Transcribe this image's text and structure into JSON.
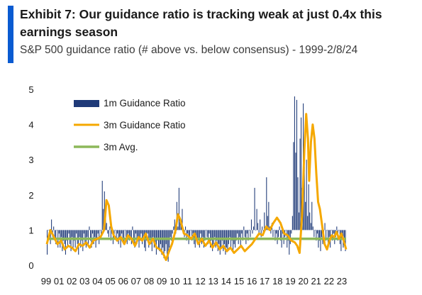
{
  "header": {
    "title": "Exhibit 7: Our guidance ratio is tracking weak at just 0.4x this earnings season",
    "subtitle": "S&P 500 guidance ratio (# above vs. below consensus) - 1999-2/8/24"
  },
  "colors": {
    "accent": "#0a5bd1",
    "bar": "#1f3a78",
    "line3m": "#f5a800",
    "avg": "#8db85a"
  },
  "chart_data": {
    "type": "bar",
    "title": "",
    "xlabel": "",
    "ylabel": "",
    "ylim": [
      0,
      5
    ],
    "yticks": [
      "0",
      "1",
      "2",
      "3",
      "4",
      "5"
    ],
    "xticks": [
      "99",
      "01",
      "02",
      "03",
      "04",
      "05",
      "06",
      "07",
      "08",
      "09",
      "10",
      "11",
      "12",
      "13",
      "14",
      "15",
      "16",
      "17",
      "18",
      "19",
      "20",
      "21",
      "22",
      "23"
    ],
    "x_start": 1999,
    "x_end": 2024.1,
    "grid": false,
    "legend": {
      "position": "top-left"
    },
    "series": [
      {
        "name": "1m Guidance Ratio",
        "kind": "bar",
        "values": "monthly ratio 1999-2024 (see bar_values)"
      },
      {
        "name": "3m Guidance Ratio",
        "kind": "line"
      },
      {
        "name": "3m Avg.",
        "kind": "line"
      }
    ],
    "avg_value": 0.75,
    "bar_values": [
      0.3,
      1.0,
      0.9,
      0.6,
      1.3,
      0.8,
      1.1,
      0.7,
      0.6,
      1.0,
      0.5,
      0.9,
      0.5,
      0.8,
      0.4,
      0.7,
      0.6,
      0.3,
      0.7,
      0.5,
      0.9,
      0.6,
      0.4,
      0.8,
      0.5,
      0.7,
      0.5,
      0.9,
      0.6,
      0.3,
      0.8,
      0.5,
      0.7,
      0.4,
      0.9,
      0.6,
      0.5,
      0.8,
      0.6,
      1.1,
      0.7,
      0.5,
      0.9,
      0.6,
      0.8,
      0.5,
      0.7,
      0.9,
      0.6,
      1.0,
      0.8,
      2.4,
      1.6,
      2.1,
      1.5,
      1.2,
      0.9,
      0.8,
      1.1,
      0.7,
      0.9,
      0.6,
      0.8,
      1.0,
      0.7,
      0.9,
      0.6,
      0.8,
      0.5,
      0.9,
      0.7,
      0.6,
      1.0,
      0.8,
      0.6,
      0.9,
      0.7,
      0.8,
      0.6,
      1.1,
      0.7,
      0.5,
      0.9,
      0.6,
      0.8,
      0.5,
      0.7,
      0.9,
      0.6,
      0.8,
      0.5,
      0.4,
      0.7,
      0.9,
      0.5,
      0.7,
      0.6,
      0.4,
      0.8,
      0.5,
      0.6,
      0.3,
      0.7,
      0.5,
      0.4,
      0.6,
      0.3,
      0.5,
      0.2,
      0.4,
      0.6,
      0.3,
      0.1,
      0.5,
      0.8,
      0.7,
      0.9,
      1.1,
      1.3,
      0.9,
      1.8,
      1.1,
      2.2,
      1.3,
      1.2,
      1.6,
      1.0,
      0.8,
      1.1,
      0.7,
      0.9,
      0.6,
      0.8,
      1.0,
      0.7,
      0.9,
      0.6,
      0.5,
      0.8,
      0.6,
      0.7,
      0.5,
      0.9,
      0.6,
      0.8,
      0.5,
      0.7,
      1.0,
      0.8,
      0.6,
      0.9,
      0.5,
      0.7,
      0.4,
      0.6,
      0.8,
      0.5,
      0.7,
      0.4,
      0.6,
      0.3,
      0.5,
      0.7,
      0.4,
      0.6,
      0.3,
      0.5,
      0.4,
      0.6,
      0.8,
      0.5,
      0.7,
      0.4,
      0.6,
      0.5,
      0.7,
      0.9,
      0.6,
      0.8,
      0.5,
      0.9,
      0.7,
      1.1,
      0.8,
      0.6,
      0.9,
      0.7,
      1.0,
      0.8,
      1.3,
      0.9,
      1.1,
      2.2,
      1.0,
      1.6,
      1.2,
      0.9,
      1.3,
      0.8,
      1.1,
      0.9,
      1.5,
      1.0,
      2.5,
      1.4,
      1.8,
      1.1,
      0.9,
      1.2,
      0.8,
      1.0,
      0.7,
      0.9,
      0.6,
      0.8,
      1.1,
      0.7,
      0.5,
      0.9,
      0.6,
      0.8,
      1.0,
      0.5,
      0.7,
      0.3,
      0.6,
      0.9,
      1.4,
      3.5,
      4.8,
      3.2,
      4.7,
      2.5,
      1.5,
      3.6,
      4.2,
      2.2,
      4.6,
      2.8,
      1.8,
      3.0,
      1.4,
      2.3,
      1.5,
      1.2,
      1.8,
      1.1,
      0.8,
      1.0,
      0.7,
      0.9,
      0.5,
      0.7,
      0.4,
      0.8,
      0.6,
      0.9,
      1.2,
      0.7,
      1.0,
      0.6,
      0.8,
      0.5,
      1.0,
      0.7,
      0.9,
      0.6,
      0.8,
      1.1,
      0.7,
      1.0,
      0.6,
      0.4,
      0.8,
      0.5,
      0.7,
      0.4
    ],
    "line_3m": [
      [
        1999.0,
        0.6
      ],
      [
        1999.3,
        1.0
      ],
      [
        1999.6,
        0.8
      ],
      [
        1999.9,
        0.6
      ],
      [
        2000.2,
        0.7
      ],
      [
        2000.5,
        0.45
      ],
      [
        2000.8,
        0.55
      ],
      [
        2001.1,
        0.5
      ],
      [
        2001.4,
        0.4
      ],
      [
        2001.7,
        0.6
      ],
      [
        2002.0,
        0.55
      ],
      [
        2002.3,
        0.65
      ],
      [
        2002.6,
        0.5
      ],
      [
        2002.9,
        0.7
      ],
      [
        2003.2,
        0.75
      ],
      [
        2003.5,
        0.8
      ],
      [
        2003.8,
        1.0
      ],
      [
        2004.0,
        1.85
      ],
      [
        2004.2,
        1.7
      ],
      [
        2004.4,
        1.1
      ],
      [
        2004.6,
        0.85
      ],
      [
        2004.9,
        0.7
      ],
      [
        2005.2,
        0.8
      ],
      [
        2005.5,
        0.6
      ],
      [
        2005.8,
        0.85
      ],
      [
        2006.1,
        0.75
      ],
      [
        2006.4,
        0.55
      ],
      [
        2006.7,
        0.8
      ],
      [
        2007.0,
        0.7
      ],
      [
        2007.3,
        0.9
      ],
      [
        2007.6,
        0.6
      ],
      [
        2007.9,
        0.75
      ],
      [
        2008.2,
        0.5
      ],
      [
        2008.5,
        0.45
      ],
      [
        2008.8,
        0.3
      ],
      [
        2009.0,
        0.15
      ],
      [
        2009.2,
        0.35
      ],
      [
        2009.5,
        0.6
      ],
      [
        2009.8,
        1.0
      ],
      [
        2010.0,
        1.45
      ],
      [
        2010.2,
        1.3
      ],
      [
        2010.5,
        0.9
      ],
      [
        2010.8,
        0.85
      ],
      [
        2011.1,
        0.75
      ],
      [
        2011.4,
        0.9
      ],
      [
        2011.7,
        0.6
      ],
      [
        2012.0,
        0.75
      ],
      [
        2012.3,
        0.55
      ],
      [
        2012.6,
        0.7
      ],
      [
        2012.9,
        0.5
      ],
      [
        2013.2,
        0.65
      ],
      [
        2013.5,
        0.45
      ],
      [
        2013.8,
        0.55
      ],
      [
        2014.1,
        0.4
      ],
      [
        2014.4,
        0.5
      ],
      [
        2014.7,
        0.35
      ],
      [
        2015.0,
        0.45
      ],
      [
        2015.3,
        0.55
      ],
      [
        2015.6,
        0.4
      ],
      [
        2015.9,
        0.5
      ],
      [
        2016.2,
        0.6
      ],
      [
        2016.5,
        0.75
      ],
      [
        2016.8,
        0.9
      ],
      [
        2017.1,
        0.85
      ],
      [
        2017.4,
        1.1
      ],
      [
        2017.7,
        1.0
      ],
      [
        2018.0,
        1.2
      ],
      [
        2018.3,
        1.35
      ],
      [
        2018.6,
        1.2
      ],
      [
        2018.9,
        0.9
      ],
      [
        2019.2,
        0.85
      ],
      [
        2019.5,
        0.7
      ],
      [
        2019.8,
        0.65
      ],
      [
        2020.0,
        0.55
      ],
      [
        2020.2,
        0.35
      ],
      [
        2020.4,
        1.4
      ],
      [
        2020.6,
        3.3
      ],
      [
        2020.75,
        4.3
      ],
      [
        2020.9,
        3.6
      ],
      [
        2021.0,
        2.4
      ],
      [
        2021.15,
        3.5
      ],
      [
        2021.3,
        4.0
      ],
      [
        2021.45,
        3.6
      ],
      [
        2021.6,
        2.6
      ],
      [
        2021.75,
        1.8
      ],
      [
        2021.9,
        1.6
      ],
      [
        2022.1,
        1.1
      ],
      [
        2022.3,
        0.6
      ],
      [
        2022.5,
        0.45
      ],
      [
        2022.7,
        0.7
      ],
      [
        2022.9,
        0.85
      ],
      [
        2023.1,
        0.8
      ],
      [
        2023.3,
        0.95
      ],
      [
        2023.5,
        0.75
      ],
      [
        2023.7,
        0.9
      ],
      [
        2023.9,
        0.7
      ],
      [
        2024.1,
        0.45
      ]
    ]
  }
}
